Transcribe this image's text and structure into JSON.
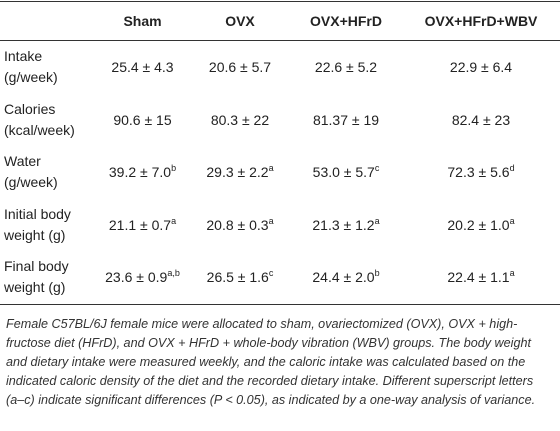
{
  "table": {
    "header": [
      "Sham",
      "OVX",
      "OVX+HFrD",
      "OVX+HFrD+WBV"
    ],
    "rows": [
      {
        "label": [
          "Intake",
          "(g/week)"
        ],
        "cells": [
          {
            "value": "25.4 ± 4.3"
          },
          {
            "value": "20.6 ± 5.7"
          },
          {
            "value": "22.6 ± 5.2"
          },
          {
            "value": "22.9 ± 6.4"
          }
        ]
      },
      {
        "label": [
          "Calories",
          "(kcal/week)"
        ],
        "cells": [
          {
            "value": "90.6 ± 15"
          },
          {
            "value": "80.3 ± 22"
          },
          {
            "value": "81.37 ± 19"
          },
          {
            "value": "82.4 ± 23"
          }
        ]
      },
      {
        "label": [
          "Water",
          "(g/week)"
        ],
        "cells": [
          {
            "value": "39.2 ± 7.0",
            "sup": "b"
          },
          {
            "value": "29.3 ± 2.2",
            "sup": "a"
          },
          {
            "value": "53.0 ± 5.7",
            "sup": "c"
          },
          {
            "value": "72.3 ± 5.6",
            "sup": "d"
          }
        ]
      },
      {
        "label": [
          "Initial body",
          "weight (g)"
        ],
        "cells": [
          {
            "value": "21.1 ± 0.7",
            "sup": "a"
          },
          {
            "value": "20.8 ± 0.3",
            "sup": "a"
          },
          {
            "value": "21.3 ± 1.2",
            "sup": "a"
          },
          {
            "value": "20.2 ± 1.0",
            "sup": "a"
          }
        ]
      },
      {
        "label": [
          "Final body",
          "weight (g)"
        ],
        "cells": [
          {
            "value": "23.6 ± 0.9",
            "sup": "a,b"
          },
          {
            "value": "26.5 ± 1.6",
            "sup": "c"
          },
          {
            "value": "24.4 ± 2.0",
            "sup": "b"
          },
          {
            "value": "22.4 ± 1.1",
            "sup": "a"
          }
        ]
      }
    ]
  },
  "caption": "Female C57BL/6J female mice were allocated to sham, ovariectomized (OVX), OVX + high-fructose diet (HFrD), and OVX + HFrD + whole-body vibration (WBV) groups. The body weight and dietary intake were measured weekly, and the caloric intake was calculated based on the indicated caloric density of the diet and the recorded dietary intake. Different superscript letters (a–c) indicate significant differences (P < 0.05), as indicated by a one-way analysis of variance."
}
